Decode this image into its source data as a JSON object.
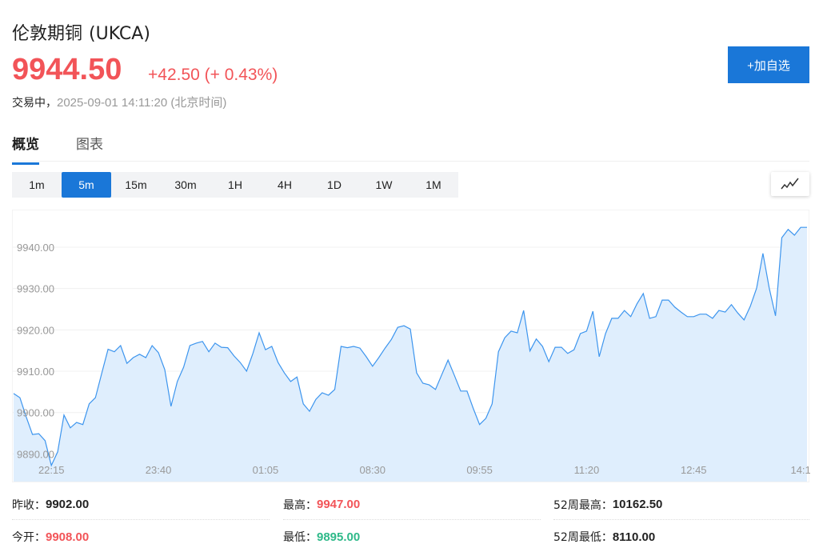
{
  "header": {
    "name": "伦敦期铜",
    "code": "(UKCA)",
    "price": "9944.50",
    "change": "+42.50 (+ 0.43%)",
    "status": "交易中，",
    "time": "2025-09-01 14:11:20 (北京时间)",
    "add_button": "+加自选"
  },
  "tabs": [
    {
      "label": "概览",
      "active": true
    },
    {
      "label": "图表",
      "active": false
    }
  ],
  "periods": [
    {
      "label": "1m"
    },
    {
      "label": "5m",
      "active": true
    },
    {
      "label": "15m"
    },
    {
      "label": "30m"
    },
    {
      "label": "1H"
    },
    {
      "label": "4H"
    },
    {
      "label": "1D"
    },
    {
      "label": "1W"
    },
    {
      "label": "1M"
    }
  ],
  "chart_type_icon": "line-chart-icon",
  "colors": {
    "up": "#f25458",
    "down": "#2eb989",
    "accent": "#1a77d8",
    "line": "#3d95ee",
    "fill": "#dfeefd"
  },
  "chart_data": {
    "type": "area",
    "ylim": [
      9883.3,
      9948.9
    ],
    "y_ticks": [
      "9890.00",
      "9900.00",
      "9910.00",
      "9920.00",
      "9930.00",
      "9940.00"
    ],
    "x_ticks": [
      "22:15",
      "23:40",
      "01:05",
      "08:30",
      "09:55",
      "11:20",
      "12:45",
      "14:1"
    ],
    "values": [
      9904.6,
      9903.6,
      9899.0,
      9894.7,
      9894.9,
      9893.2,
      9887.2,
      9890.5,
      9899.4,
      9896.3,
      9897.6,
      9897.1,
      9902.1,
      9903.6,
      9909.5,
      9915.3,
      9914.7,
      9916.2,
      9911.9,
      9913.3,
      9914.1,
      9913.3,
      9916.2,
      9914.5,
      9910.4,
      9901.5,
      9907.5,
      9911.0,
      9916.2,
      9916.8,
      9917.2,
      9914.7,
      9916.8,
      9915.8,
      9915.7,
      9913.7,
      9912.1,
      9910.0,
      9914.3,
      9919.3,
      9915.2,
      9916.0,
      9912.1,
      9909.6,
      9907.5,
      9908.6,
      9902.1,
      9900.3,
      9903.2,
      9904.8,
      9904.2,
      9905.6,
      9916.0,
      9915.7,
      9916.0,
      9915.6,
      9913.5,
      9911.2,
      9913.3,
      9915.6,
      9917.7,
      9920.6,
      9921.0,
      9920.2,
      9909.6,
      9907.1,
      9906.7,
      9905.6,
      9909.2,
      9912.7,
      9909.0,
      9905.2,
      9905.2,
      9901.0,
      9897.1,
      9898.6,
      9902.1,
      9914.7,
      9918.1,
      9919.7,
      9919.3,
      9924.7,
      9914.9,
      9917.8,
      9916.0,
      9912.3,
      9915.8,
      9915.8,
      9914.3,
      9915.2,
      9919.1,
      9919.7,
      9924.5,
      9913.5,
      9919.1,
      9922.8,
      9922.8,
      9924.7,
      9923.2,
      9926.3,
      9928.8,
      9922.8,
      9923.2,
      9927.2,
      9927.2,
      9925.5,
      9924.3,
      9923.2,
      9923.2,
      9923.8,
      9923.8,
      9922.8,
      9924.7,
      9924.3,
      9926.1,
      9924.1,
      9922.4,
      9925.7,
      9930.1,
      9938.5,
      9930.1,
      9923.4,
      9942.3,
      9944.3,
      9942.9,
      9944.8,
      9944.8
    ],
    "grid": true
  },
  "stats": [
    {
      "label": "昨收：",
      "value": "9902.00",
      "color": "normal"
    },
    {
      "label": "最高：",
      "value": "9947.00",
      "color": "red"
    },
    {
      "label": "52周最高：",
      "value": "10162.50",
      "color": "normal"
    },
    {
      "label": "今开：",
      "value": "9908.00",
      "color": "red"
    },
    {
      "label": "最低：",
      "value": "9895.00",
      "color": "green"
    },
    {
      "label": "52周最低：",
      "value": "8110.00",
      "color": "normal"
    }
  ]
}
